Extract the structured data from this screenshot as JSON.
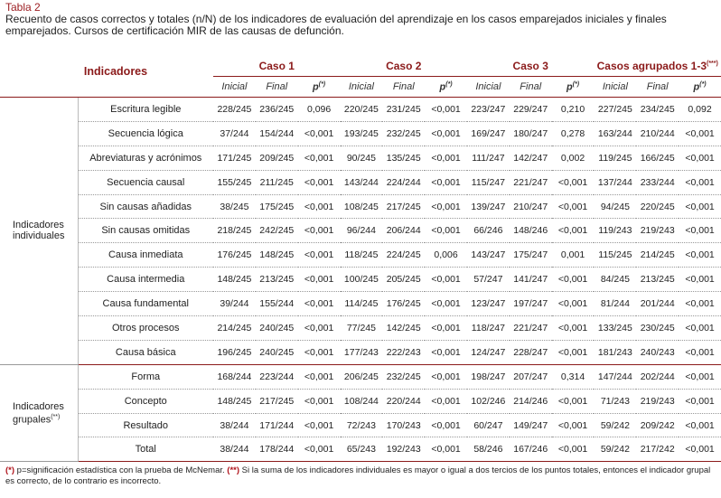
{
  "header": {
    "label": "Tabla 2",
    "caption": "Recuento de casos correctos y totales (n/N) de los indicadores de evaluación del aprendizaje en los casos emparejados iniciales y finales emparejados. Cursos de certificación MIR de las causas de defunción."
  },
  "table": {
    "corner": "Indicadores",
    "column_groups": [
      [
        "Caso 1"
      ],
      [
        "Caso 2"
      ],
      [
        "Caso 3"
      ],
      [
        "Casos agrupados 1-3",
        "(***)"
      ]
    ],
    "subheaders": [
      [
        "Inicial"
      ],
      [
        "Final"
      ],
      [
        "p",
        "(*)"
      ],
      [
        "Inicial"
      ],
      [
        "Final"
      ],
      [
        "p",
        "(*)"
      ],
      [
        "Inicial"
      ],
      [
        "Final"
      ],
      [
        "p",
        "(*)"
      ],
      [
        "Inicial"
      ],
      [
        "Final"
      ],
      [
        "p",
        "(*)"
      ]
    ],
    "groups": [
      {
        "label": [
          "Indicadores individuales"
        ],
        "rows": [
          [
            "Escritura legible",
            "228/245",
            "236/245",
            "0,096",
            "220/245",
            "231/245",
            "<0,001",
            "223/247",
            "229/247",
            "0,210",
            "227/245",
            "234/245",
            "0,092"
          ],
          [
            "Secuencia lógica",
            "37/244",
            "154/244",
            "<0,001",
            "193/245",
            "232/245",
            "<0,001",
            "169/247",
            "180/247",
            "0,278",
            "163/244",
            "210/244",
            "<0,001"
          ],
          [
            "Abreviaturas y acrónimos",
            "171/245",
            "209/245",
            "<0,001",
            "90/245",
            "135/245",
            "<0,001",
            "111/247",
            "142/247",
            "0,002",
            "119/245",
            "166/245",
            "<0,001"
          ],
          [
            "Secuencia causal",
            "155/245",
            "211/245",
            "<0,001",
            "143/244",
            "224/244",
            "<0,001",
            "115/247",
            "221/247",
            "<0,001",
            "137/244",
            "233/244",
            "<0,001"
          ],
          [
            "Sin causas añadidas",
            "38/245",
            "175/245",
            "<0,001",
            "108/245",
            "217/245",
            "<0,001",
            "139/247",
            "210/247",
            "<0,001",
            "94/245",
            "220/245",
            "<0,001"
          ],
          [
            "Sin causas omitidas",
            "218/245",
            "242/245",
            "<0,001",
            "96/244",
            "206/244",
            "<0,001",
            "66/246",
            "148/246",
            "<0,001",
            "119/243",
            "219/243",
            "<0,001"
          ],
          [
            "Causa inmediata",
            "176/245",
            "148/245",
            "<0,001",
            "118/245",
            "224/245",
            "0,006",
            "143/247",
            "175/247",
            "0,001",
            "115/245",
            "214/245",
            "<0,001"
          ],
          [
            "Causa intermedia",
            "148/245",
            "213/245",
            "<0,001",
            "100/245",
            "205/245",
            "<0,001",
            "57/247",
            "141/247",
            "<0,001",
            "84/245",
            "213/245",
            "<0,001"
          ],
          [
            "Causa fundamental",
            "39/244",
            "155/244",
            "<0,001",
            "114/245",
            "176/245",
            "<0,001",
            "123/247",
            "197/247",
            "<0,001",
            "81/244",
            "201/244",
            "<0,001"
          ],
          [
            "Otros procesos",
            "214/245",
            "240/245",
            "<0,001",
            "77/245",
            "142/245",
            "<0,001",
            "118/247",
            "221/247",
            "<0,001",
            "133/245",
            "230/245",
            "<0,001"
          ],
          [
            "Causa básica",
            "196/245",
            "240/245",
            "<0,001",
            "177/243",
            "222/243",
            "<0,001",
            "124/247",
            "228/247",
            "<0,001",
            "181/243",
            "240/243",
            "<0,001"
          ]
        ]
      },
      {
        "label": [
          "Indicadores grupales",
          "(**)"
        ],
        "rows": [
          [
            "Forma",
            "168/244",
            "223/244",
            "<0,001",
            "206/245",
            "232/245",
            "<0,001",
            "198/247",
            "207/247",
            "0,314",
            "147/244",
            "202/244",
            "<0,001"
          ],
          [
            "Concepto",
            "148/245",
            "217/245",
            "<0,001",
            "108/244",
            "220/244",
            "<0,001",
            "102/246",
            "214/246",
            "<0,001",
            "71/243",
            "219/243",
            "<0,001"
          ],
          [
            "Resultado",
            "38/244",
            "171/244",
            "<0,001",
            "72/243",
            "170/243",
            "<0,001",
            "60/247",
            "149/247",
            "<0,001",
            "59/242",
            "209/242",
            "<0,001"
          ],
          [
            "Total",
            "38/244",
            "178/244",
            "<0,001",
            "65/243",
            "192/243",
            "<0,001",
            "58/246",
            "167/246",
            "<0,001",
            "59/242",
            "217/242",
            "<0,001"
          ]
        ]
      }
    ]
  },
  "footnote": [
    "(*)",
    "p=significación estadística con la prueba de McNemar.",
    "(**)",
    "Si la suma de los indicadores individuales es mayor o igual a dos tercios de los puntos totales, entonces el indicador grupal es correcto, de lo contrario es incorrecto."
  ]
}
